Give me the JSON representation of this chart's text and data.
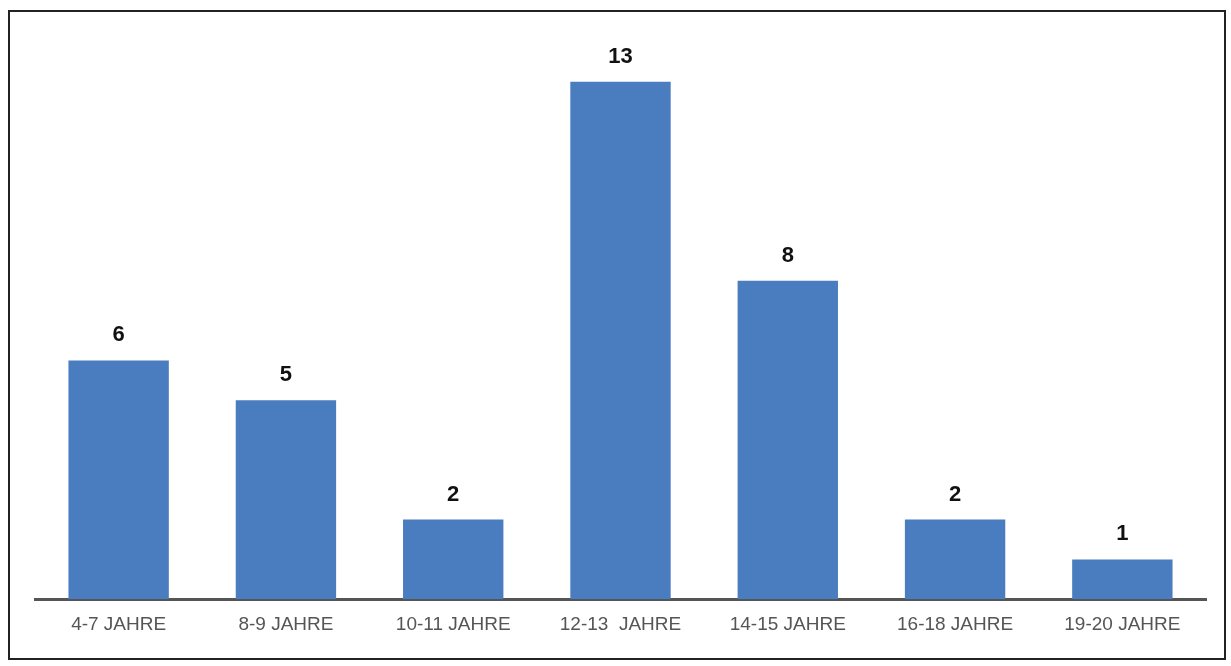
{
  "chart_data": {
    "type": "bar",
    "categories": [
      "4-7 JAHRE",
      "8-9 JAHRE",
      "10-11 JAHRE",
      "12-13  JAHRE",
      "14-15 JAHRE",
      "16-18 JAHRE",
      "19-20 JAHRE"
    ],
    "values": [
      6,
      5,
      2,
      13,
      8,
      2,
      1
    ],
    "color": "#4a7cc0",
    "data_labels": true,
    "grid": false,
    "legend": false
  }
}
